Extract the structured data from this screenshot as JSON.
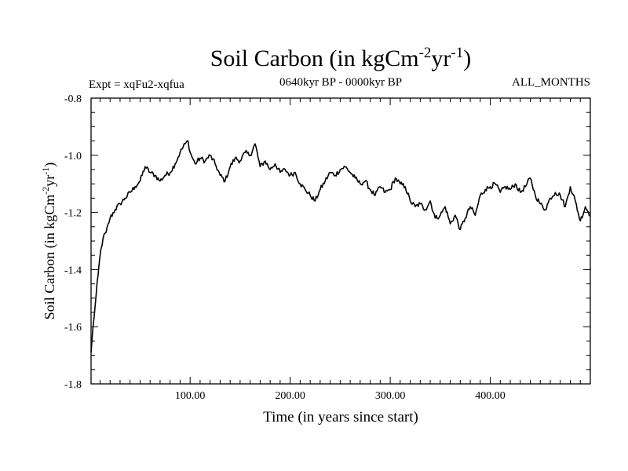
{
  "chart_data": {
    "type": "line",
    "title_main": "Soil Carbon (in kgCm",
    "title_sup1": "-2",
    "title_mid": "yr",
    "title_sup2": "-1",
    "title_end": ")",
    "subtitle_left": "Expt = xqFu2-xqfua",
    "subtitle_center": "0640kyr BP - 0000kyr BP",
    "subtitle_right": "ALL_MONTHS",
    "xlabel": "Time (in years since start)",
    "ylabel_main": "Soil Carbon (in kgCm",
    "ylabel_sup1": "-2",
    "ylabel_mid": "yr",
    "ylabel_sup2": "-1",
    "ylabel_end": ")",
    "xlim": [
      1,
      500
    ],
    "ylim": [
      -1.8,
      -0.8
    ],
    "x_ticks": [
      100,
      200,
      300,
      400
    ],
    "x_tick_labels": [
      "100.00",
      "200.00",
      "300.00",
      "400.00"
    ],
    "y_ticks": [
      -1.8,
      -1.6,
      -1.4,
      -1.2,
      -1.0,
      -0.8
    ],
    "y_tick_labels": [
      "-1.8",
      "-1.6",
      "-1.4",
      "-1.2",
      "-1.0",
      "-0.8"
    ],
    "series": [
      {
        "name": "Soil Carbon",
        "color": "#000000",
        "x": [
          1,
          3,
          5,
          8,
          10,
          13,
          16,
          20,
          25,
          30,
          35,
          40,
          45,
          50,
          55,
          60,
          65,
          70,
          75,
          80,
          85,
          90,
          95,
          98,
          100,
          105,
          110,
          115,
          120,
          125,
          130,
          135,
          140,
          145,
          150,
          155,
          160,
          165,
          170,
          175,
          180,
          185,
          190,
          195,
          200,
          205,
          210,
          215,
          220,
          225,
          230,
          235,
          240,
          245,
          250,
          255,
          260,
          265,
          270,
          275,
          280,
          285,
          290,
          295,
          300,
          305,
          310,
          315,
          320,
          325,
          330,
          335,
          340,
          345,
          350,
          355,
          360,
          365,
          370,
          375,
          380,
          385,
          390,
          395,
          400,
          405,
          410,
          415,
          420,
          425,
          430,
          435,
          440,
          445,
          450,
          455,
          460,
          465,
          470,
          475,
          480,
          485,
          490,
          495,
          500
        ],
        "values": [
          -1.69,
          -1.6,
          -1.53,
          -1.42,
          -1.35,
          -1.29,
          -1.27,
          -1.22,
          -1.19,
          -1.17,
          -1.15,
          -1.13,
          -1.11,
          -1.09,
          -1.04,
          -1.06,
          -1.07,
          -1.09,
          -1.07,
          -1.06,
          -1.03,
          -0.99,
          -0.96,
          -0.95,
          -0.99,
          -1.03,
          -1.01,
          -1.02,
          -1.0,
          -1.03,
          -1.07,
          -1.09,
          -1.04,
          -1.01,
          -1.02,
          -0.99,
          -1.0,
          -0.96,
          -1.04,
          -1.02,
          -1.05,
          -1.03,
          -1.06,
          -1.05,
          -1.07,
          -1.06,
          -1.1,
          -1.12,
          -1.14,
          -1.16,
          -1.12,
          -1.09,
          -1.06,
          -1.07,
          -1.05,
          -1.04,
          -1.06,
          -1.08,
          -1.1,
          -1.09,
          -1.12,
          -1.14,
          -1.11,
          -1.13,
          -1.12,
          -1.08,
          -1.1,
          -1.11,
          -1.16,
          -1.18,
          -1.17,
          -1.19,
          -1.16,
          -1.22,
          -1.21,
          -1.18,
          -1.24,
          -1.21,
          -1.26,
          -1.22,
          -1.18,
          -1.21,
          -1.14,
          -1.12,
          -1.11,
          -1.1,
          -1.13,
          -1.11,
          -1.12,
          -1.1,
          -1.13,
          -1.11,
          -1.08,
          -1.14,
          -1.17,
          -1.19,
          -1.15,
          -1.13,
          -1.14,
          -1.18,
          -1.11,
          -1.16,
          -1.23,
          -1.18,
          -1.21
        ]
      }
    ]
  }
}
